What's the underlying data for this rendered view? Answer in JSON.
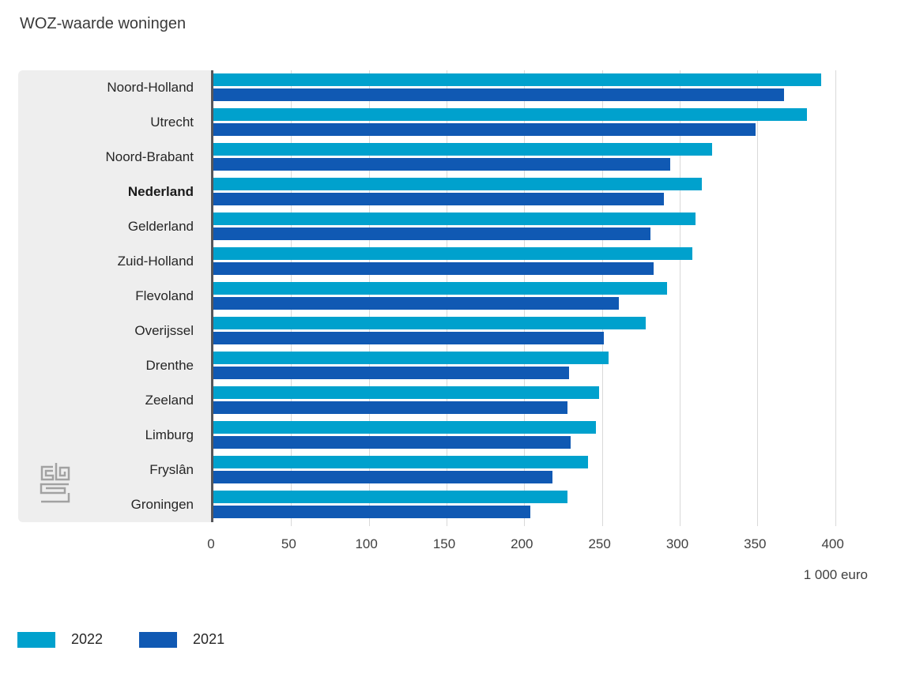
{
  "title": "WOZ-waarde woningen",
  "chart_data": {
    "type": "bar",
    "orientation": "horizontal",
    "title": "WOZ-waarde woningen",
    "xlabel": "1 000 euro",
    "categories": [
      "Noord-Holland",
      "Utrecht",
      "Noord-Brabant",
      "Nederland",
      "Gelderland",
      "Zuid-Holland",
      "Flevoland",
      "Overijssel",
      "Drenthe",
      "Zeeland",
      "Limburg",
      "Fryslân",
      "Groningen"
    ],
    "bold_category": "Nederland",
    "series": [
      {
        "name": "2022",
        "color": "#00a1cd",
        "values": [
          391,
          382,
          321,
          314,
          310,
          308,
          292,
          278,
          254,
          248,
          246,
          241,
          228
        ]
      },
      {
        "name": "2021",
        "color": "#1059b3",
        "values": [
          367,
          349,
          294,
          290,
          281,
          283,
          261,
          251,
          229,
          228,
          230,
          218,
          204
        ]
      }
    ],
    "x_ticks": [
      0,
      50,
      100,
      150,
      200,
      250,
      300,
      350,
      400
    ],
    "x_max": 420,
    "xlim": [
      0,
      420
    ],
    "grid": true,
    "legend_position": "bottom"
  },
  "colors": {
    "series_2022": "#00a1cd",
    "series_2021": "#1059b3",
    "label_panel_bg": "#eeeeee",
    "axis_line": "#55565a",
    "gridline": "#d9d9d9"
  },
  "branding": {
    "logo_name": "CBS"
  }
}
